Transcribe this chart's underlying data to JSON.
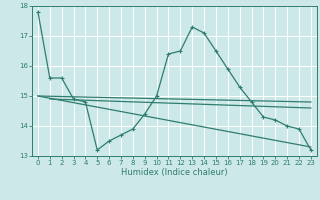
{
  "title": "",
  "xlabel": "Humidex (Indice chaleur)",
  "ylabel": "",
  "background_color": "#cde8e8",
  "grid_color": "#ffffff",
  "line_color": "#2e7d6e",
  "xlim": [
    -0.5,
    23.5
  ],
  "ylim": [
    13,
    18
  ],
  "yticks": [
    13,
    14,
    15,
    16,
    17,
    18
  ],
  "xticks": [
    0,
    1,
    2,
    3,
    4,
    5,
    6,
    7,
    8,
    9,
    10,
    11,
    12,
    13,
    14,
    15,
    16,
    17,
    18,
    19,
    20,
    21,
    22,
    23
  ],
  "series1_x": [
    0,
    1,
    2,
    3,
    4,
    5,
    6,
    7,
    8,
    9,
    10,
    11,
    12,
    13,
    14,
    15,
    16,
    17,
    18,
    19,
    20,
    21,
    22,
    23
  ],
  "series1_y": [
    17.8,
    15.6,
    15.6,
    14.9,
    14.8,
    13.2,
    13.5,
    13.7,
    13.9,
    14.4,
    15.0,
    16.4,
    16.5,
    17.3,
    17.1,
    16.5,
    15.9,
    15.3,
    14.8,
    14.3,
    14.2,
    14.0,
    13.9,
    13.2
  ],
  "series2_x": [
    0,
    23
  ],
  "series2_y": [
    15.0,
    14.8
  ],
  "series3_x": [
    0,
    23
  ],
  "series3_y": [
    15.0,
    13.3
  ],
  "series4_x": [
    1,
    23
  ],
  "series4_y": [
    14.9,
    14.6
  ]
}
